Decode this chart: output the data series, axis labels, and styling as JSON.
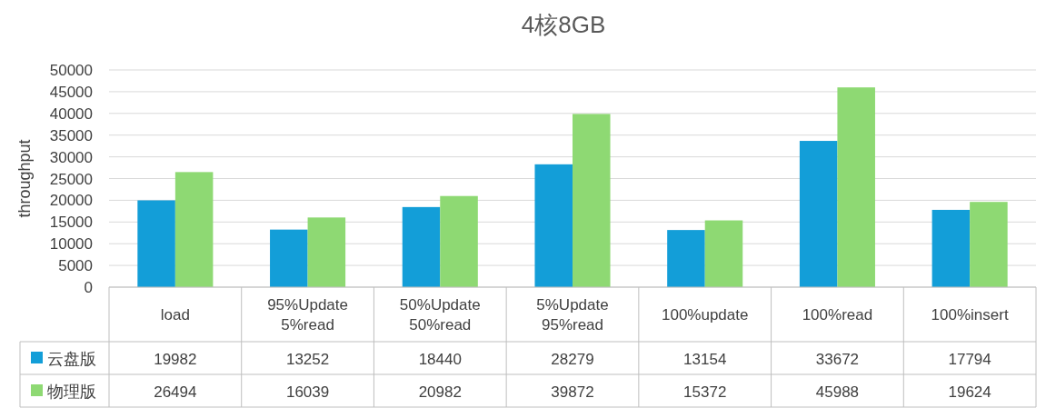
{
  "chart_data": {
    "type": "bar",
    "title": "4核8GB",
    "ylabel": "throughput",
    "categories": [
      "load",
      "95%Update 5%read",
      "50%Update 50%read",
      "5%Update 95%read",
      "100%update",
      "100%read",
      "100%insert"
    ],
    "series": [
      {
        "name": "云盘版",
        "color": "#139ed8",
        "values": [
          19982,
          13252,
          18440,
          28279,
          13154,
          33672,
          17794
        ]
      },
      {
        "name": "物理版",
        "color": "#8ed973",
        "values": [
          26494,
          16039,
          20982,
          39872,
          15372,
          45988,
          19624
        ]
      }
    ],
    "ylim": [
      0,
      50000
    ],
    "yticks": [
      0,
      5000,
      10000,
      15000,
      20000,
      25000,
      30000,
      35000,
      40000,
      45000,
      50000
    ],
    "grid": "y",
    "data_labels": true,
    "legend": "bottom left"
  }
}
